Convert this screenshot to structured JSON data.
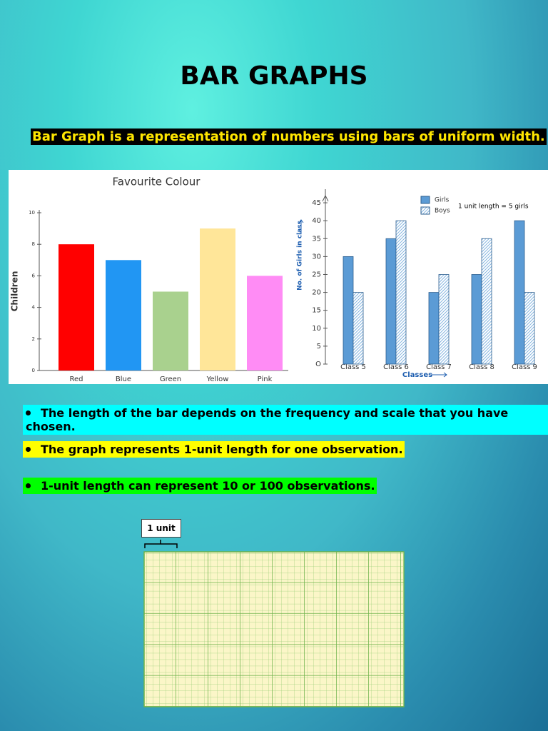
{
  "title": "BAR GRAPHS",
  "intro": "Bar Graph is a representation of numbers using bars of uniform width.",
  "chart_data": [
    {
      "type": "bar",
      "title": "Favourite Colour",
      "y_label": "Children",
      "categories": [
        "Red",
        "Blue",
        "Green",
        "Yellow",
        "Pink"
      ],
      "values": [
        8,
        7,
        5,
        9,
        6
      ],
      "colors": [
        "#ff0000",
        "#2196f3",
        "#a9d18e",
        "#ffe699",
        "#ff8cf5"
      ],
      "ylim": [
        0,
        10
      ],
      "yticks": [
        0,
        2,
        4,
        6,
        8,
        10
      ]
    },
    {
      "type": "bar",
      "y_label": "No. of Girls in class",
      "x_label": "Classes",
      "annotation": "1 unit length = 5 girls",
      "categories": [
        "Class 5",
        "Class 6",
        "Class 7",
        "Class 8",
        "Class 9"
      ],
      "series": [
        {
          "name": "Girls",
          "color": "#5b9bd5",
          "values": [
            30,
            35,
            20,
            25,
            40
          ]
        },
        {
          "name": "Boys",
          "color": "#5b9bd5",
          "hatch": true,
          "values": [
            20,
            40,
            25,
            35,
            20
          ]
        }
      ],
      "ylim": [
        0,
        48
      ],
      "yticks": [
        {
          "value": 0,
          "label": "O"
        },
        5,
        10,
        15,
        20,
        25,
        30,
        35,
        40,
        45
      ]
    }
  ],
  "bullets": [
    "The length of the bar depends on the frequency and scale that you have chosen.",
    "The graph represents 1-unit length for one observation.",
    "1-unit length can represent 10 or 100 observations."
  ],
  "unit_label": "1 unit"
}
